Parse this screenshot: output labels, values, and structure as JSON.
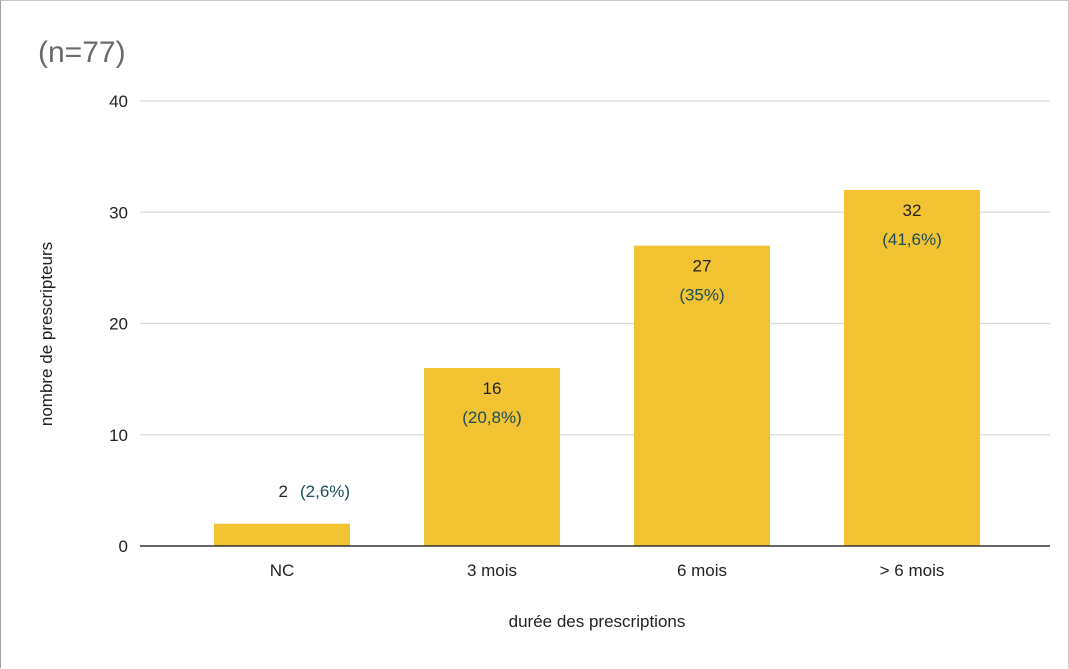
{
  "chart_data": {
    "type": "bar",
    "title": "(n=77)",
    "xlabel": "durée des prescriptions",
    "ylabel": "nombre de prescripteurs",
    "categories": [
      "NC",
      "3 mois",
      "6 mois",
      "> 6 mois"
    ],
    "values": [
      2,
      16,
      27,
      32
    ],
    "labels": [
      "2",
      "16",
      "27",
      "32"
    ],
    "percent_labels": [
      "(2,6%)",
      "(20,8%)",
      "(35%)",
      "(41,6%)"
    ],
    "yticks": [
      "0",
      "10",
      "20",
      "30",
      "40"
    ],
    "ylim": [
      0,
      40
    ],
    "grid": true,
    "legend": "none",
    "colors": {
      "bar": "#f1c232",
      "grid": "#d9d9d9",
      "axis": "#333333",
      "percent_text": "#1a4e5a"
    }
  }
}
